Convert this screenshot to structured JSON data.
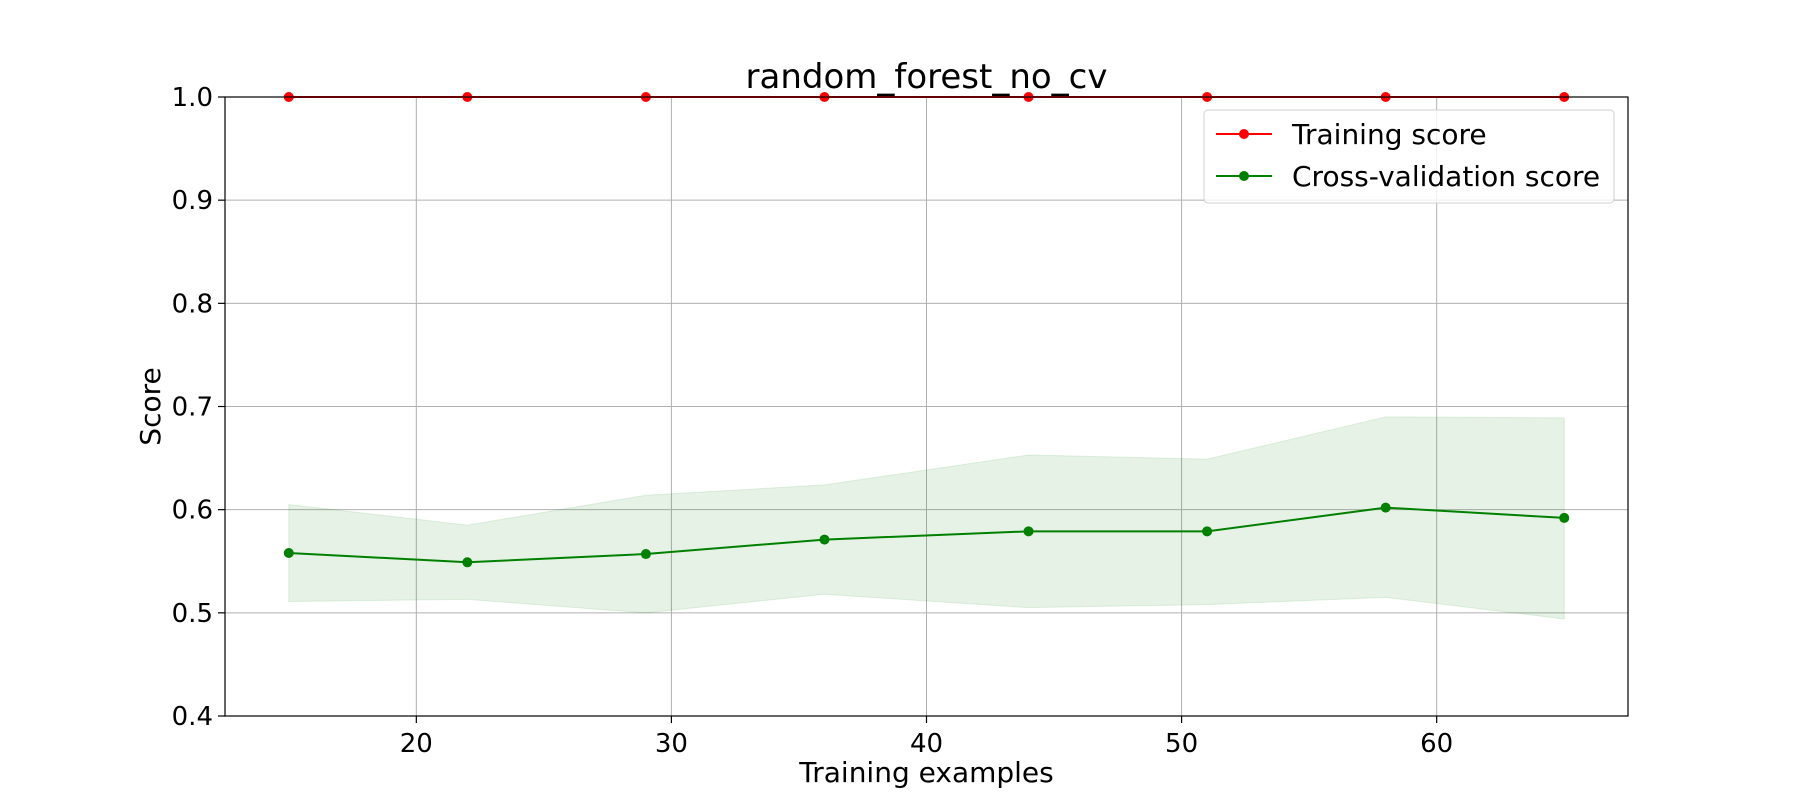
{
  "chart_data": {
    "type": "line",
    "title": "random_forest_no_cv",
    "xlabel": "Training examples",
    "ylabel": "Score",
    "xlim": [
      12.5,
      67.5
    ],
    "ylim": [
      0.4,
      1.0
    ],
    "xticks": [
      20,
      30,
      40,
      50,
      60
    ],
    "yticks": [
      0.4,
      0.5,
      0.6,
      0.7,
      0.8,
      0.9,
      1.0
    ],
    "xtick_labels": [
      "20",
      "30",
      "40",
      "50",
      "60"
    ],
    "ytick_labels": [
      "0.4",
      "0.5",
      "0.6",
      "0.7",
      "0.8",
      "0.9",
      "1.0"
    ],
    "grid": true,
    "legend_position": "upper right",
    "x": [
      15,
      22,
      29,
      36,
      44,
      51,
      58,
      65
    ],
    "series": [
      {
        "name": "Training score",
        "color": "#ff0000",
        "values": [
          1.0,
          1.0,
          1.0,
          1.0,
          1.0,
          1.0,
          1.0,
          1.0
        ],
        "band_lower": [
          1.0,
          1.0,
          1.0,
          1.0,
          1.0,
          1.0,
          1.0,
          1.0
        ],
        "band_upper": [
          1.0,
          1.0,
          1.0,
          1.0,
          1.0,
          1.0,
          1.0,
          1.0
        ]
      },
      {
        "name": "Cross-validation score",
        "color": "#008000",
        "values": [
          0.558,
          0.549,
          0.557,
          0.571,
          0.579,
          0.579,
          0.602,
          0.592
        ],
        "band_lower": [
          0.511,
          0.513,
          0.5,
          0.518,
          0.505,
          0.508,
          0.515,
          0.494
        ],
        "band_upper": [
          0.605,
          0.585,
          0.614,
          0.624,
          0.653,
          0.649,
          0.69,
          0.689
        ]
      }
    ]
  }
}
